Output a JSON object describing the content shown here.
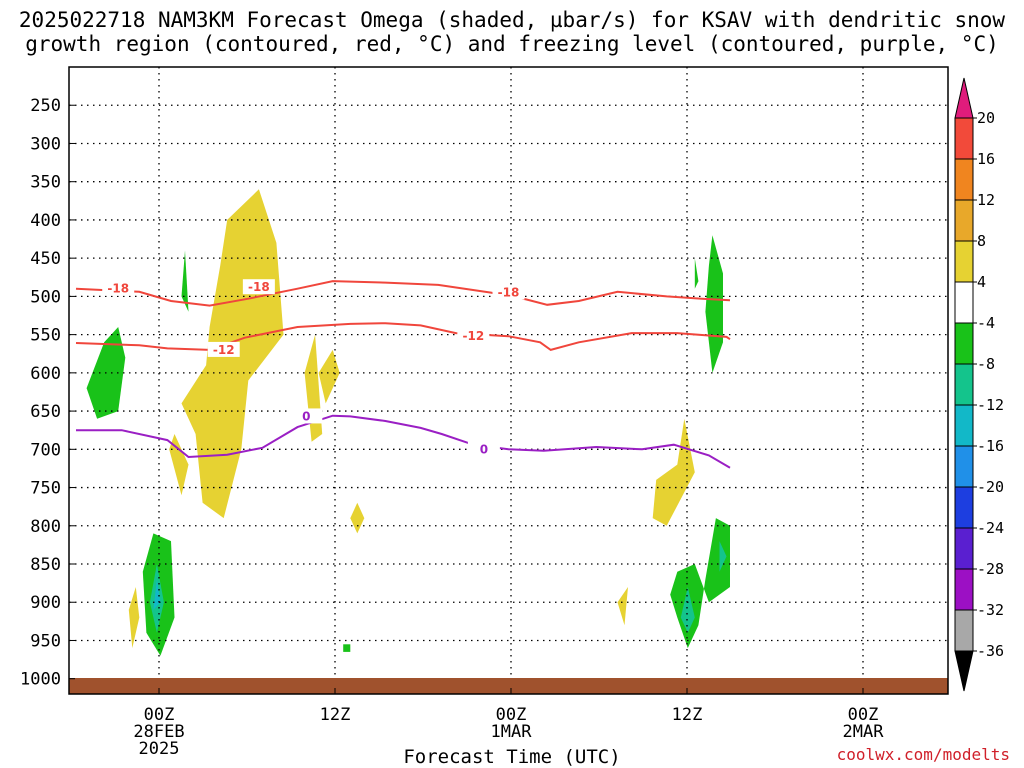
{
  "title_line1": "2025022718 NAM3KM Forecast Omega (shaded, µbar/s) for KSAV with dendritic snow",
  "title_line2": "growth region (contoured, red, °C) and freezing level (contoured, purple, °C)",
  "x_axis_label": "Forecast Time (UTC)",
  "watermark": "coolwx.com/modelts",
  "chart_data": {
    "type": "heatmap",
    "title": "2025022718 NAM3KM Forecast Omega (shaded, µbar/s) for KSAV with dendritic snow growth region (contoured, red, °C) and freezing level (contoured, purple, °C)",
    "xlabel": "Forecast Time (UTC)",
    "ylabel": "",
    "x_range_hours": [
      -18,
      32
    ],
    "x_ticks": [
      {
        "hour": 0,
        "lines": [
          "00Z",
          "28FEB",
          "2025"
        ]
      },
      {
        "hour": 10,
        "lines": [
          "12Z"
        ]
      },
      {
        "hour": 20,
        "lines": [
          "00Z",
          "1MAR"
        ]
      },
      {
        "hour": 30,
        "lines": [
          "12Z"
        ]
      },
      {
        "hour": 40,
        "lines": [
          "00Z",
          "2MAR"
        ]
      }
    ],
    "x_ticks_note": "tick positions in forecast-step units",
    "y_axis": {
      "type": "pressure",
      "units": "hPa",
      "range": [
        1020,
        200
      ],
      "inverted": true
    },
    "y_ticks": [
      250,
      300,
      350,
      400,
      450,
      500,
      550,
      600,
      650,
      700,
      750,
      800,
      850,
      900,
      950,
      1000
    ],
    "colorbar": {
      "labels": [
        "20",
        "16",
        "12",
        "8",
        "4",
        "-4",
        "-8",
        "-12",
        "-16",
        "-20",
        "-24",
        "-28",
        "-32",
        "-36"
      ],
      "colors": [
        "#e01c7c",
        "#f24a3a",
        "#f0851f",
        "#e8a82a",
        "#e6d232",
        "#ffffff",
        "#19c219",
        "#14c48c",
        "#12b8c8",
        "#2090e8",
        "#1d3ee0",
        "#5a1fd0",
        "#9c10c4",
        "#a8a8a8",
        "#000000"
      ]
    },
    "series": [
      {
        "name": "-18",
        "color": "#f0463c",
        "label_positions": [
          [
            -15.2,
            490
          ],
          [
            -7.2,
            488
          ],
          [
            7.0,
            495
          ]
        ],
        "points": [
          [
            -17.6,
            490
          ],
          [
            -14,
            494
          ],
          [
            -12.2,
            506
          ],
          [
            -10,
            512
          ],
          [
            -7.8,
            503
          ],
          [
            -5,
            490
          ],
          [
            -3,
            480
          ],
          [
            0,
            482
          ],
          [
            3,
            485
          ],
          [
            6,
            495
          ],
          [
            8,
            504
          ],
          [
            9.2,
            511
          ],
          [
            11,
            506
          ],
          [
            13.2,
            494
          ],
          [
            16,
            500
          ],
          [
            18,
            503
          ],
          [
            19.6,
            505
          ]
        ]
      },
      {
        "name": "-12",
        "color": "#f0463c",
        "label_positions": [
          [
            -9.2,
            570
          ],
          [
            5.0,
            552
          ]
        ],
        "points": [
          [
            -17.6,
            561
          ],
          [
            -14,
            564
          ],
          [
            -12.4,
            568
          ],
          [
            -10,
            570
          ],
          [
            -8,
            554
          ],
          [
            -5,
            540
          ],
          [
            -2,
            536
          ],
          [
            0,
            535
          ],
          [
            2,
            538
          ],
          [
            4,
            548
          ],
          [
            7,
            552
          ],
          [
            8.8,
            560
          ],
          [
            9.4,
            570
          ],
          [
            11,
            560
          ],
          [
            14,
            548
          ],
          [
            16.6,
            548
          ],
          [
            19.4,
            553
          ],
          [
            19.6,
            556
          ]
        ]
      },
      {
        "name": "0",
        "color": "#9a1fc4",
        "label_positions": [
          [
            -4.5,
            657
          ],
          [
            5.6,
            700
          ]
        ],
        "points": [
          [
            -17.6,
            675
          ],
          [
            -15,
            675
          ],
          [
            -12.4,
            688
          ],
          [
            -11.2,
            710
          ],
          [
            -9,
            707
          ],
          [
            -7,
            698
          ],
          [
            -5,
            671
          ],
          [
            -3,
            656
          ],
          [
            -2,
            657
          ],
          [
            0,
            663
          ],
          [
            2,
            672
          ],
          [
            3.2,
            680
          ],
          [
            5,
            694
          ],
          [
            7,
            700
          ],
          [
            9,
            702
          ],
          [
            12,
            697
          ],
          [
            14.6,
            700
          ],
          [
            16.4,
            694
          ],
          [
            18.4,
            708
          ],
          [
            19.6,
            724
          ]
        ]
      }
    ],
    "shaded_regions": [
      {
        "value_bin": "4 to 8",
        "color": "#e6d232",
        "bounds": [
          [
            -9,
            400
          ],
          [
            -7.2,
            360
          ],
          [
            -6.2,
            430
          ],
          [
            -5.8,
            550
          ],
          [
            -7.8,
            610
          ],
          [
            -8.2,
            700
          ],
          [
            -9.2,
            790
          ],
          [
            -10.4,
            770
          ],
          [
            -10.8,
            680
          ],
          [
            -11.6,
            640
          ],
          [
            -10.2,
            590
          ],
          [
            -10,
            540
          ],
          [
            -9.4,
            460
          ]
        ]
      },
      {
        "value_bin": "4 to 8",
        "color": "#e6d232",
        "bounds": [
          [
            -4,
            550
          ],
          [
            -3.6,
            680
          ],
          [
            -4.2,
            690
          ],
          [
            -4.6,
            600
          ]
        ]
      },
      {
        "value_bin": "4 to 8",
        "color": "#e6d232",
        "bounds": [
          [
            -3,
            570
          ],
          [
            -2.6,
            600
          ],
          [
            -3.4,
            640
          ],
          [
            -3.8,
            600
          ]
        ]
      },
      {
        "value_bin": "4 to 8",
        "color": "#e6d232",
        "bounds": [
          [
            -1.6,
            770
          ],
          [
            -1.2,
            790
          ],
          [
            -1.6,
            810
          ],
          [
            -2,
            790
          ]
        ]
      },
      {
        "value_bin": "4 to 8",
        "color": "#e6d232",
        "bounds": [
          [
            17,
            660
          ],
          [
            17.6,
            730
          ],
          [
            16,
            800
          ],
          [
            15.2,
            790
          ],
          [
            15.4,
            740
          ],
          [
            16.6,
            720
          ]
        ]
      },
      {
        "value_bin": "4 to 8",
        "color": "#e6d232",
        "bounds": [
          [
            -12,
            680
          ],
          [
            -11.2,
            720
          ],
          [
            -11.6,
            760
          ],
          [
            -12.3,
            700
          ]
        ]
      },
      {
        "value_bin": "4 to 8",
        "color": "#e6d232",
        "bounds": [
          [
            -14.2,
            880
          ],
          [
            -14,
            920
          ],
          [
            -14.4,
            960
          ],
          [
            -14.6,
            910
          ]
        ]
      },
      {
        "value_bin": "4 to 8",
        "color": "#e6d232",
        "bounds": [
          [
            13.8,
            880
          ],
          [
            13.6,
            930
          ],
          [
            13.2,
            900
          ]
        ]
      },
      {
        "value_bin": "-8 to -4",
        "color": "#19c219",
        "bounds": [
          [
            -16,
            560
          ],
          [
            -15.2,
            540
          ],
          [
            -14.8,
            580
          ],
          [
            -15.2,
            650
          ],
          [
            -16.4,
            660
          ],
          [
            -17,
            620
          ]
        ]
      },
      {
        "value_bin": "-8 to -4",
        "color": "#19c219",
        "bounds": [
          [
            -11.4,
            440
          ],
          [
            -11.2,
            520
          ],
          [
            -11.6,
            500
          ]
        ]
      },
      {
        "value_bin": "-8 to -4",
        "color": "#19c219",
        "bounds": [
          [
            -13.2,
            810
          ],
          [
            -12.2,
            820
          ],
          [
            -12,
            920
          ],
          [
            -12.8,
            970
          ],
          [
            -13.6,
            940
          ],
          [
            -13.8,
            860
          ]
        ]
      },
      {
        "value_bin": "-8 to -4",
        "color": "#19c219",
        "bounds": [
          [
            -2.4,
            955
          ],
          [
            -2,
            955
          ],
          [
            -2,
            965
          ],
          [
            -2.4,
            965
          ]
        ]
      },
      {
        "value_bin": "-8 to -4",
        "color": "#19c219",
        "bounds": [
          [
            18.6,
            420
          ],
          [
            19.2,
            470
          ],
          [
            19.2,
            560
          ],
          [
            18.6,
            600
          ],
          [
            18.2,
            520
          ],
          [
            18.4,
            460
          ]
        ]
      },
      {
        "value_bin": "-8 to -4",
        "color": "#19c219",
        "bounds": [
          [
            17.6,
            450
          ],
          [
            17.8,
            480
          ],
          [
            17.6,
            490
          ]
        ]
      },
      {
        "value_bin": "-8 to -4",
        "color": "#19c219",
        "bounds": [
          [
            16.6,
            860
          ],
          [
            17.6,
            850
          ],
          [
            18.4,
            900
          ],
          [
            19.6,
            880
          ],
          [
            19.6,
            800
          ],
          [
            18.8,
            790
          ],
          [
            18.2,
            870
          ],
          [
            17.8,
            930
          ],
          [
            17.2,
            960
          ],
          [
            16.6,
            920
          ],
          [
            16.2,
            890
          ]
        ]
      },
      {
        "value_bin": "-12 to -8",
        "color": "#14c48c",
        "bounds": [
          [
            -13,
            850
          ],
          [
            -12.6,
            900
          ],
          [
            -13,
            940
          ],
          [
            -13.4,
            900
          ]
        ]
      },
      {
        "value_bin": "-16 to -12",
        "color": "#12b8c8",
        "bounds": [
          [
            -13,
            870
          ],
          [
            -12.8,
            900
          ],
          [
            -13.2,
            910
          ]
        ]
      },
      {
        "value_bin": "-12 to -8",
        "color": "#14c48c",
        "bounds": [
          [
            17.2,
            880
          ],
          [
            17.6,
            920
          ],
          [
            17.2,
            940
          ],
          [
            16.8,
            920
          ]
        ]
      },
      {
        "value_bin": "-12 to -8",
        "color": "#14c48c",
        "bounds": [
          [
            19,
            820
          ],
          [
            19.4,
            840
          ],
          [
            19,
            860
          ]
        ]
      }
    ],
    "grid": true,
    "legend": "colorbar right"
  }
}
